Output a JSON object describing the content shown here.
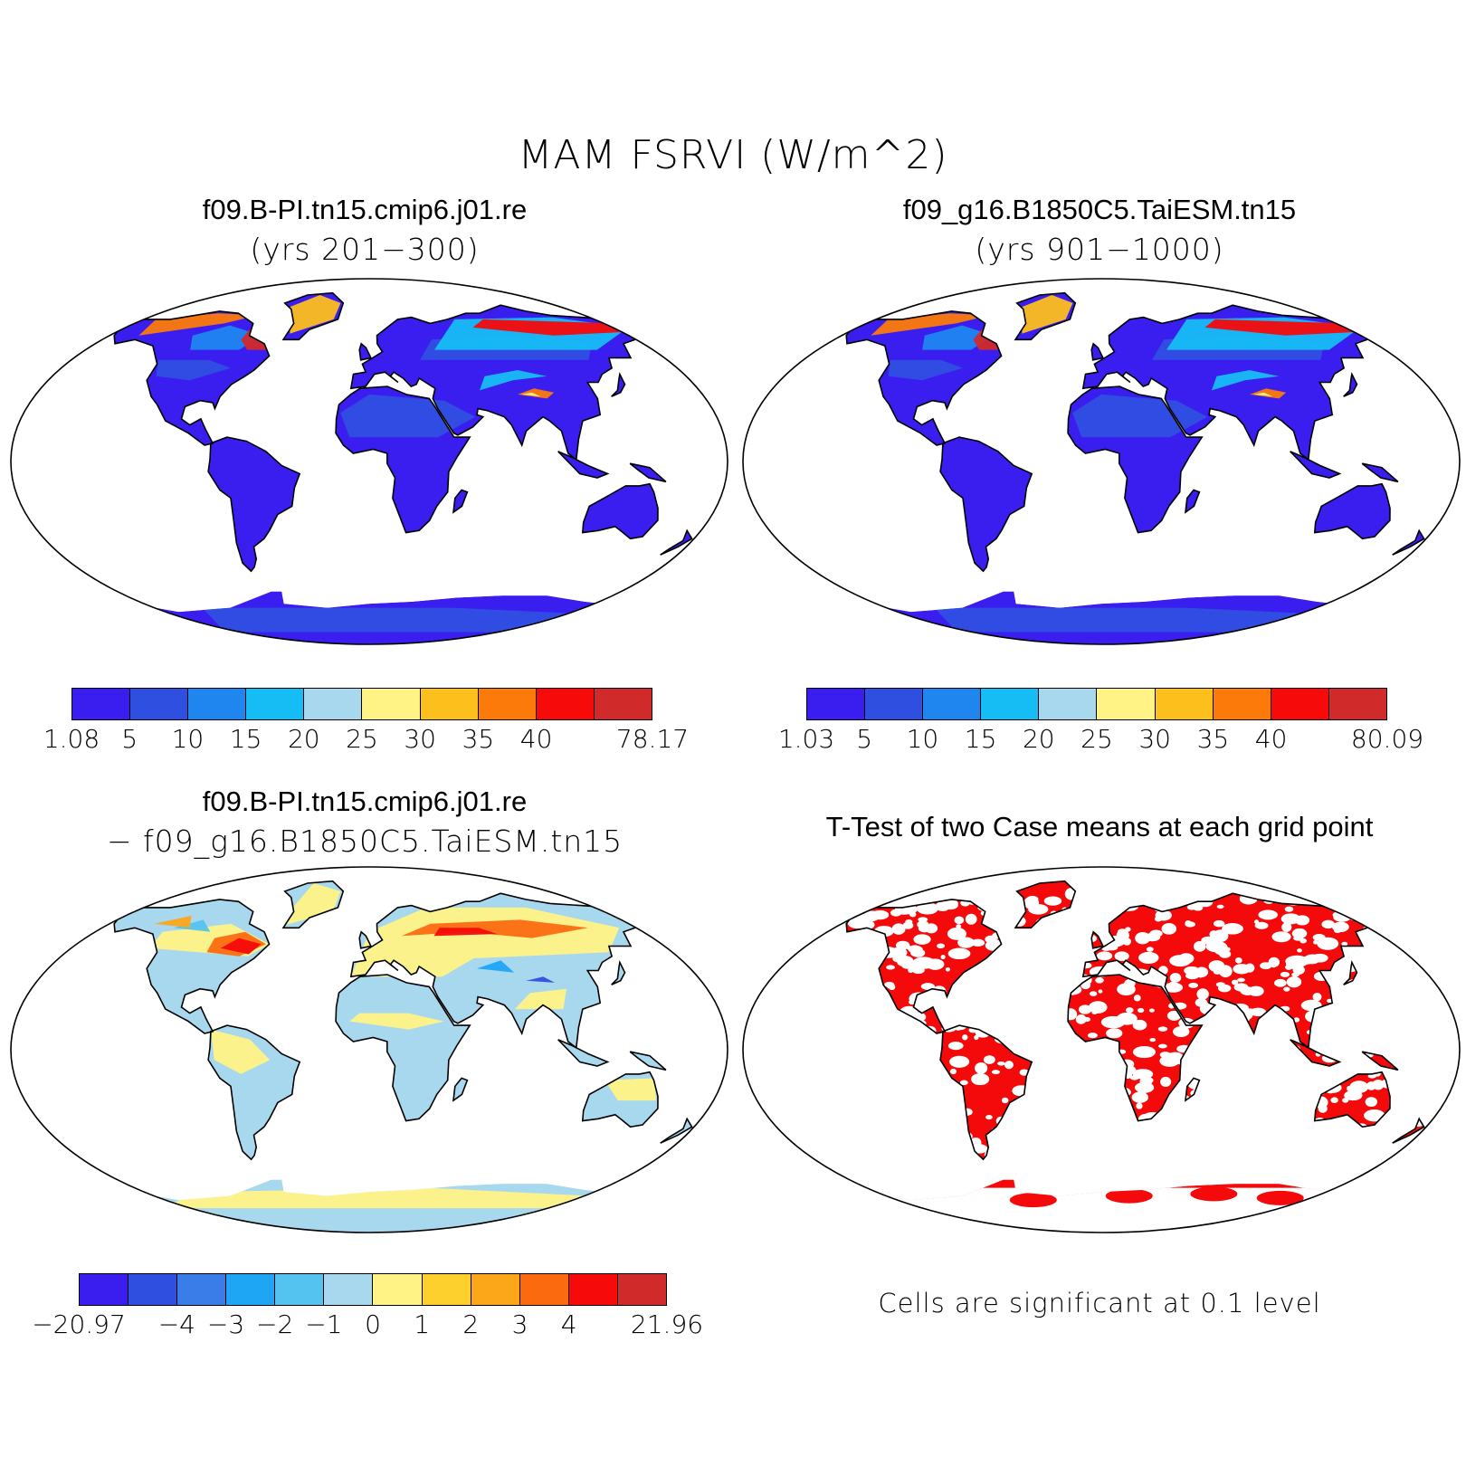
{
  "title": "MAM FSRVI (W/m^2)",
  "panels": [
    {
      "name": "f09.B-PI.tn15.cmip6.j01.re",
      "subtitle": "(yrs 201−300)",
      "colorbar": {
        "colors": [
          "#3a1ef0",
          "#2f4fe0",
          "#1f86f0",
          "#16bdf5",
          "#a8d8ee",
          "#fff386",
          "#fdbf1c",
          "#fc7a0a",
          "#f60a0a",
          "#d02a2a"
        ],
        "labels": [
          "1.08",
          "5",
          "10",
          "15",
          "20",
          "25",
          "30",
          "35",
          "40",
          "",
          "78.17"
        ]
      }
    },
    {
      "name": "f09_g16.B1850C5.TaiESM.tn15",
      "subtitle": "(yrs 901−1000)",
      "colorbar": {
        "colors": [
          "#3a1ef0",
          "#2f4fe0",
          "#1f86f0",
          "#16bdf5",
          "#a8d8ee",
          "#fff386",
          "#fdbf1c",
          "#fc7a0a",
          "#f60a0a",
          "#d02a2a"
        ],
        "labels": [
          "1.03",
          "5",
          "10",
          "15",
          "20",
          "25",
          "30",
          "35",
          "40",
          "",
          "80.09"
        ]
      }
    },
    {
      "name": "f09.B-PI.tn15.cmip6.j01.re",
      "subtitle": "− f09_g16.B1850C5.TaiESM.tn15",
      "colorbar": {
        "colors": [
          "#3a1ef0",
          "#2f4fe0",
          "#3a7ce8",
          "#1ea6f5",
          "#55c3ef",
          "#a8d8ee",
          "#fff386",
          "#fdd02e",
          "#fca71a",
          "#fc6a10",
          "#f60a0a",
          "#d02a2a"
        ],
        "labels": [
          "−20.97",
          "",
          "−4",
          "−3",
          "−2",
          "−1",
          "0",
          "1",
          "2",
          "3",
          "4",
          "",
          "21.96"
        ]
      }
    },
    {
      "name": "T-Test of two Case means at each grid point",
      "note": "Cells are significant at 0.1 level"
    }
  ],
  "colors": {
    "land_base": "#3a22ee",
    "land_mid": "#2f58e2",
    "arctic_warm": "#fc7a0a",
    "diff_base": "#a8d8ee",
    "diff_warm": "#fff386",
    "sig_red": "#f40a0a"
  }
}
